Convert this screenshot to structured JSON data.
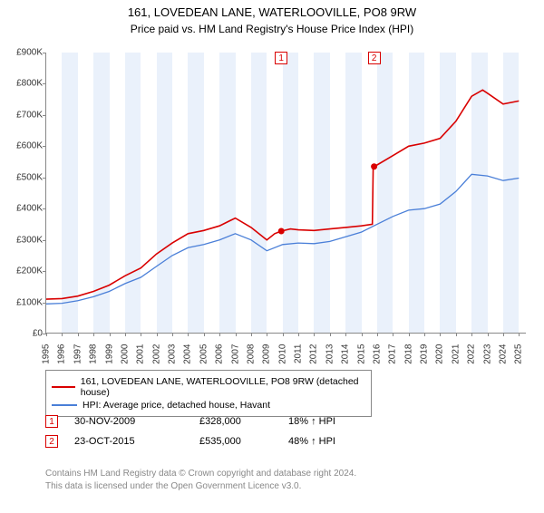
{
  "title": "161, LOVEDEAN LANE, WATERLOOVILLE, PO8 9RW",
  "subtitle": "Price paid vs. HM Land Registry's House Price Index (HPI)",
  "chart": {
    "type": "line",
    "background_color": "#ffffff",
    "alt_band_color": "#eaf1fb",
    "axis_color": "#888888",
    "x_years": [
      1995,
      1996,
      1997,
      1998,
      1999,
      2000,
      2001,
      2002,
      2003,
      2004,
      2005,
      2006,
      2007,
      2008,
      2009,
      2010,
      2011,
      2012,
      2013,
      2014,
      2015,
      2016,
      2017,
      2018,
      2019,
      2020,
      2021,
      2022,
      2023,
      2024,
      2025
    ],
    "x_range": [
      1995,
      2025.5
    ],
    "ylim": [
      0,
      900
    ],
    "ytick_step": 100,
    "ytick_prefix": "£",
    "ytick_suffix": "K",
    "label_fontsize": 10,
    "series": [
      {
        "name": "161, LOVEDEAN LANE, WATERLOOVILLE, PO8 9RW (detached house)",
        "color": "#d90000",
        "line_width": 1.6,
        "points": [
          [
            1995,
            110
          ],
          [
            1996,
            112
          ],
          [
            1997,
            120
          ],
          [
            1998,
            135
          ],
          [
            1999,
            155
          ],
          [
            2000,
            185
          ],
          [
            2001,
            210
          ],
          [
            2002,
            255
          ],
          [
            2003,
            290
          ],
          [
            2004,
            320
          ],
          [
            2005,
            330
          ],
          [
            2006,
            345
          ],
          [
            2007,
            370
          ],
          [
            2008,
            340
          ],
          [
            2009,
            300
          ],
          [
            2009.5,
            320
          ],
          [
            2009.917,
            328
          ],
          [
            2010.5,
            335
          ],
          [
            2011,
            332
          ],
          [
            2012,
            330
          ],
          [
            2013,
            335
          ],
          [
            2014,
            340
          ],
          [
            2015,
            345
          ],
          [
            2015.7,
            350
          ],
          [
            2015.75,
            532
          ],
          [
            2015.81,
            535
          ],
          [
            2016,
            540
          ],
          [
            2017,
            570
          ],
          [
            2018,
            600
          ],
          [
            2019,
            610
          ],
          [
            2020,
            625
          ],
          [
            2021,
            680
          ],
          [
            2022,
            760
          ],
          [
            2022.7,
            780
          ],
          [
            2023,
            770
          ],
          [
            2024,
            735
          ],
          [
            2025,
            745
          ]
        ]
      },
      {
        "name": "HPI: Average price, detached house, Havant",
        "color": "#4a7fd8",
        "line_width": 1.3,
        "points": [
          [
            1995,
            95
          ],
          [
            1996,
            97
          ],
          [
            1997,
            105
          ],
          [
            1998,
            118
          ],
          [
            1999,
            135
          ],
          [
            2000,
            160
          ],
          [
            2001,
            180
          ],
          [
            2002,
            215
          ],
          [
            2003,
            250
          ],
          [
            2004,
            275
          ],
          [
            2005,
            285
          ],
          [
            2006,
            300
          ],
          [
            2007,
            320
          ],
          [
            2008,
            300
          ],
          [
            2009,
            265
          ],
          [
            2010,
            285
          ],
          [
            2011,
            290
          ],
          [
            2012,
            288
          ],
          [
            2013,
            295
          ],
          [
            2014,
            310
          ],
          [
            2015,
            325
          ],
          [
            2016,
            350
          ],
          [
            2017,
            375
          ],
          [
            2018,
            395
          ],
          [
            2019,
            400
          ],
          [
            2020,
            415
          ],
          [
            2021,
            455
          ],
          [
            2022,
            510
          ],
          [
            2023,
            505
          ],
          [
            2024,
            490
          ],
          [
            2025,
            498
          ]
        ]
      }
    ],
    "markers": [
      {
        "n": "1",
        "year": 2009.917,
        "value": 328,
        "color": "#d90000"
      },
      {
        "n": "2",
        "year": 2015.81,
        "value": 535,
        "color": "#d90000"
      }
    ],
    "marker_dot_radius": 3.5
  },
  "legend": {
    "border_color": "#888888",
    "items": [
      {
        "color": "#d90000",
        "label": "161, LOVEDEAN LANE, WATERLOOVILLE, PO8 9RW (detached house)"
      },
      {
        "color": "#4a7fd8",
        "label": "HPI: Average price, detached house, Havant"
      }
    ]
  },
  "transactions": [
    {
      "n": "1",
      "color": "#d90000",
      "date": "30-NOV-2009",
      "price": "£328,000",
      "pct": "18% ↑ HPI"
    },
    {
      "n": "2",
      "color": "#d90000",
      "date": "23-OCT-2015",
      "price": "£535,000",
      "pct": "48% ↑ HPI"
    }
  ],
  "footer_line1": "Contains HM Land Registry data © Crown copyright and database right 2024.",
  "footer_line2": "This data is licensed under the Open Government Licence v3.0."
}
